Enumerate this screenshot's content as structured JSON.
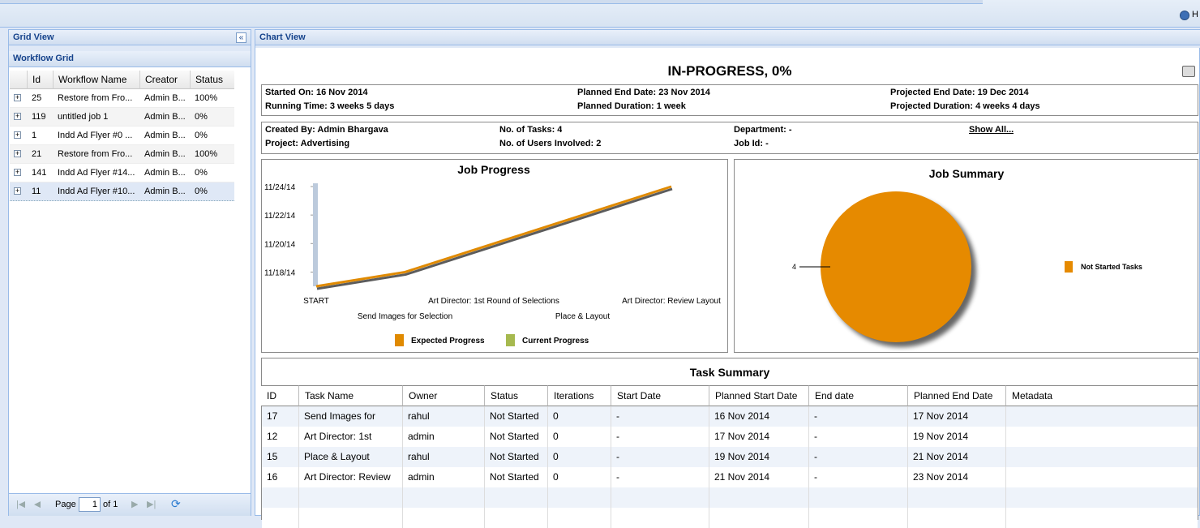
{
  "toolbar": {
    "help": "H"
  },
  "grid_view": {
    "title": "Grid View",
    "grid_title": "Workflow Grid",
    "columns": [
      "Id",
      "Workflow Name",
      "Creator",
      "Status"
    ],
    "rows": [
      [
        "25",
        "Restore from Fro...",
        "Admin B...",
        "100%"
      ],
      [
        "119",
        "untitled job 1",
        "Admin B...",
        "0%"
      ],
      [
        "1",
        "Indd Ad Flyer #0 ...",
        "Admin B...",
        "0%"
      ],
      [
        "21",
        "Restore from Fro...",
        "Admin B...",
        "100%"
      ],
      [
        "141",
        "Indd Ad Flyer #14...",
        "Admin B...",
        "0%"
      ],
      [
        "11",
        "Indd Ad Flyer #10...",
        "Admin B...",
        "0%"
      ]
    ],
    "pager": {
      "page_label": "Page",
      "page": 1,
      "of": "of 1"
    }
  },
  "chart_view": {
    "title": "Chart View",
    "heading": "IN-PROGRESS, 0%",
    "info": [
      [
        "Started On: 16 Nov 2014",
        "Planned End Date: 23 Nov 2014",
        "Projected End Date: 19 Dec 2014"
      ],
      [
        "Running Time: 3 weeks 5 days",
        "Planned Duration: 1 week",
        "Projected Duration: 4 weeks 4 days"
      ]
    ],
    "details": [
      [
        "Created By: Admin Bhargava",
        "No. of Tasks: 4",
        "Department: -",
        "Show All..."
      ],
      [
        "Project: Advertising",
        "No. of Users Involved: 2",
        "Job Id: -"
      ]
    ],
    "task_summary": {
      "title": "Task Summary",
      "columns": [
        "ID",
        "Task Name",
        "Owner",
        "Status",
        "Iterations",
        "Start Date",
        "Planned Start Date",
        "End date",
        "Planned End Date",
        "Metadata"
      ],
      "rows": [
        [
          "17",
          "Send Images for",
          "rahul",
          "Not Started",
          "0",
          "-",
          "16 Nov 2014",
          "-",
          "17 Nov 2014"
        ],
        [
          "12",
          "Art Director: 1st",
          "admin",
          "Not Started",
          "0",
          "-",
          "17 Nov 2014",
          "-",
          "19 Nov 2014"
        ],
        [
          "15",
          "Place & Layout",
          "rahul",
          "Not Started",
          "0",
          "-",
          "19 Nov 2014",
          "-",
          "21 Nov 2014"
        ],
        [
          "16",
          "Art Director: Review",
          "admin",
          "Not Started",
          "0",
          "-",
          "21 Nov 2014",
          "-",
          "23 Nov 2014"
        ]
      ]
    }
  },
  "chart_data": [
    {
      "type": "line",
      "title": "Job Progress",
      "categories": [
        "START",
        "Send Images for Selection",
        "Art Director: 1st Round of Selections",
        "Place & Layout",
        "Art Director: Review Layout"
      ],
      "series": [
        {
          "name": "Expected Progress",
          "color": "#e08a00",
          "values": [
            "2014-11-17",
            "2014-11-18",
            "2014-11-20",
            "2014-11-22",
            "2014-11-24"
          ]
        },
        {
          "name": "Current Progress",
          "color": "#a6b94f",
          "values": [
            null,
            null,
            null,
            null,
            null
          ]
        }
      ],
      "ylim": [
        "2014-11-17",
        "2014-11-24"
      ],
      "yticks": [
        {
          "value": "2014-11-18",
          "label": "11/18/14"
        },
        {
          "value": "2014-11-20",
          "label": "11/20/14"
        },
        {
          "value": "2014-11-22",
          "label": "11/22/14"
        },
        {
          "value": "2014-11-24",
          "label": "11/24/14"
        }
      ]
    },
    {
      "type": "pie",
      "title": "Job Summary",
      "categories": [
        "Not Started Tasks"
      ],
      "values": [
        4
      ],
      "colors": [
        "#e68a00"
      ],
      "legend": "right"
    }
  ]
}
